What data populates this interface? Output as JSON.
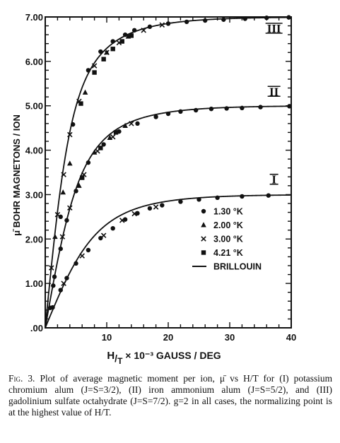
{
  "chart_data": {
    "type": "scatter",
    "xlabel": {
      "prefix": "H",
      "sub": "T",
      "rest": " × 10⁻³ GAUSS / DEG"
    },
    "ylabel": "μ̄ BOHR MAGNETONS / ION",
    "xlim": [
      0,
      40
    ],
    "ylim": [
      0,
      7
    ],
    "x_ticks": [
      {
        "v": 10,
        "label": "10"
      },
      {
        "v": 20,
        "label": "20"
      },
      {
        "v": 30,
        "label": "30"
      },
      {
        "v": 40,
        "label": "40"
      }
    ],
    "y_ticks": [
      {
        "v": 0,
        "label": ".00"
      },
      {
        "v": 1,
        "label": "1.00"
      },
      {
        "v": 2,
        "label": "2.00"
      },
      {
        "v": 3,
        "label": "3.00"
      },
      {
        "v": 4,
        "label": "4.00"
      },
      {
        "v": 5,
        "label": "5.00"
      },
      {
        "v": 6,
        "label": "6.00"
      },
      {
        "v": 7,
        "label": "7.00"
      }
    ],
    "grid": false,
    "legend_position": "lower-right",
    "legend": [
      {
        "marker": "circle",
        "label": "1.30  °K"
      },
      {
        "marker": "triangle",
        "label": "2.00  °K"
      },
      {
        "marker": "cross",
        "label": "3.00  °K"
      },
      {
        "marker": "square",
        "label": "4.21  °K"
      },
      {
        "marker": "line",
        "label": "BRILLOUIN"
      }
    ],
    "curves": [
      {
        "label": "I",
        "J": 1.5,
        "saturation": 3.0
      },
      {
        "label": "II",
        "J": 2.5,
        "saturation": 5.0
      },
      {
        "label": "III",
        "J": 3.5,
        "saturation": 7.0
      }
    ],
    "series": [
      {
        "marker": "circle",
        "curve": "I",
        "x": [
          1.2,
          2.5,
          3.5,
          5.0,
          7.0,
          9.0,
          11.0,
          13.0,
          15.0,
          17.0,
          19.0,
          22.0,
          25.0,
          28.0,
          32.0,
          36.3
        ],
        "y": [
          0.46,
          0.85,
          1.12,
          1.45,
          1.75,
          2.02,
          2.24,
          2.44,
          2.58,
          2.69,
          2.76,
          2.84,
          2.89,
          2.93,
          2.96,
          2.98
        ]
      },
      {
        "marker": "cross",
        "curve": "I",
        "x": [
          3.0,
          6.0,
          9.5,
          12.5,
          14.5,
          18.0
        ],
        "y": [
          1.0,
          1.62,
          2.08,
          2.42,
          2.57,
          2.72
        ]
      },
      {
        "marker": "circle",
        "curve": "II",
        "x": [
          1.3,
          2.5,
          3.5,
          5.0,
          7.0,
          9.5,
          12.0,
          15.0,
          18.0,
          20.0,
          22.0,
          24.5,
          27.0,
          29.5,
          32.0,
          35.0,
          39.7
        ],
        "y": [
          0.95,
          1.78,
          2.42,
          3.08,
          3.72,
          4.13,
          4.42,
          4.6,
          4.75,
          4.82,
          4.87,
          4.9,
          4.93,
          4.94,
          4.95,
          4.97,
          4.99
        ]
      },
      {
        "marker": "triangle",
        "curve": "II",
        "x": [
          5.5,
          8.0,
          10.5,
          13.0
        ],
        "y": [
          3.2,
          3.95,
          4.28,
          4.55
        ]
      },
      {
        "marker": "square",
        "curve": "II",
        "x": [
          6.0,
          9.0,
          11.5
        ],
        "y": [
          3.38,
          4.05,
          4.4
        ]
      },
      {
        "marker": "cross",
        "curve": "II",
        "x": [
          2.8,
          4.0,
          6.3,
          8.5,
          11.0,
          14.0
        ],
        "y": [
          2.05,
          2.7,
          3.45,
          3.98,
          4.3,
          4.6
        ]
      },
      {
        "marker": "circle",
        "curve": "III",
        "x": [
          0.8,
          1.5,
          2.5,
          4.5,
          7.0,
          9.0,
          11.0,
          13.0,
          14.5,
          17.0,
          20.0,
          23.0,
          26.0,
          29.0,
          32.5,
          36.0,
          39.6
        ],
        "y": [
          0.45,
          1.15,
          2.5,
          4.58,
          5.8,
          6.22,
          6.45,
          6.6,
          6.7,
          6.78,
          6.85,
          6.89,
          6.92,
          6.94,
          6.96,
          6.98,
          6.99
        ]
      },
      {
        "marker": "triangle",
        "curve": "III",
        "x": [
          1.6,
          2.9,
          4.0,
          6.5,
          10.0,
          13.5
        ],
        "y": [
          2.05,
          3.05,
          3.7,
          5.3,
          6.2,
          6.56
        ]
      },
      {
        "marker": "square",
        "curve": "III",
        "x": [
          5.8,
          8.0,
          9.5,
          11.0,
          12.5,
          14.0
        ],
        "y": [
          5.05,
          5.75,
          6.05,
          6.28,
          6.45,
          6.58
        ]
      },
      {
        "marker": "cross",
        "curve": "III",
        "x": [
          1.0,
          2.0,
          3.0,
          4.0,
          5.5,
          8.0,
          10.0,
          12.0,
          16.0,
          19.0
        ],
        "y": [
          1.35,
          2.55,
          3.45,
          4.35,
          5.1,
          5.9,
          6.2,
          6.42,
          6.7,
          6.82
        ]
      }
    ]
  },
  "caption": {
    "lead": "Fig. 3.",
    "text": " Plot of average magnetic moment per ion, μ̄ vs H/T for (I) potassium chromium alum (J=S=3/2), (II) iron ammonium alum (J=S=5/2), and (III) gadolinium sulfate octahydrate (J=S=7/2). g=2 in all cases, the normalizing point is at the highest value of H/T."
  }
}
